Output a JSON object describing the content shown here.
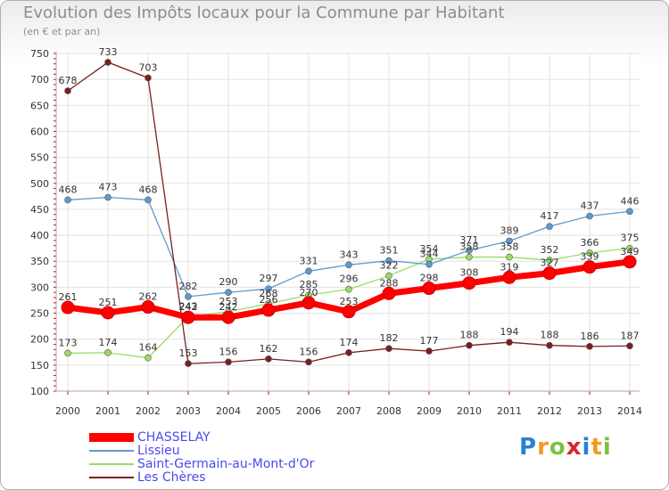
{
  "title": "Evolution des Impôts locaux pour la Commune par Habitant",
  "subtitle": "(en € et par an)",
  "logo": {
    "letters": [
      "P",
      "r",
      "o",
      "x",
      "i",
      "t",
      "i"
    ],
    "colors": [
      "#2a7fd4",
      "#f29a1f",
      "#7cc243",
      "#d9262b",
      "#2a7fd4",
      "#f29a1f",
      "#7cc243"
    ]
  },
  "chart_data": {
    "type": "line",
    "x": [
      "2000",
      "2001",
      "2002",
      "2003",
      "2004",
      "2005",
      "2006",
      "2007",
      "2008",
      "2009",
      "2010",
      "2011",
      "2012",
      "2013",
      "2014"
    ],
    "ylim": [
      100,
      750
    ],
    "yticks": [
      100,
      150,
      200,
      250,
      300,
      350,
      400,
      450,
      500,
      550,
      600,
      650,
      700,
      750
    ],
    "grid": true,
    "legend_position": "bottom-left",
    "series": [
      {
        "name": "CHASSELAY",
        "color": "#ff0000",
        "values": [
          261,
          251,
          262,
          242,
          242,
          256,
          270,
          253,
          288,
          298,
          308,
          319,
          327,
          339,
          349
        ],
        "labels": [
          "261",
          "251",
          "262",
          "242",
          "242",
          "256",
          "270",
          "253",
          "288",
          "298",
          "308",
          "319",
          "327",
          "339",
          "349"
        ]
      },
      {
        "name": "Lissieu",
        "color": "#5c9bd1",
        "values": [
          468,
          473,
          468,
          282,
          290,
          297,
          331,
          343,
          351,
          344,
          371,
          389,
          417,
          437,
          446
        ],
        "labels": [
          "468",
          "473",
          "468",
          "282",
          "290",
          "297",
          "331",
          "343",
          "351",
          "344",
          "371",
          "389",
          "417",
          "437",
          "446"
        ]
      },
      {
        "name": "Saint-Germain-au-Mont-d'Or",
        "color": "#99dd66",
        "values": [
          173,
          174,
          164,
          243,
          253,
          268,
          285,
          296,
          322,
          354,
          358,
          358,
          352,
          366,
          375
        ],
        "labels": [
          "173",
          "174",
          "164",
          "243",
          "253",
          "268",
          "285",
          "296",
          "322",
          "354",
          "358",
          "358",
          "352",
          "366",
          "375"
        ]
      },
      {
        "name": "Les Chères",
        "color": "#7a1f1f",
        "values": [
          678,
          733,
          703,
          153,
          156,
          162,
          156,
          174,
          182,
          177,
          188,
          194,
          188,
          186,
          187
        ],
        "labels": [
          "678",
          "733",
          "703",
          "153",
          "156",
          "162",
          "156",
          "174",
          "182",
          "177",
          "188",
          "194",
          "188",
          "186",
          "187"
        ]
      }
    ]
  }
}
